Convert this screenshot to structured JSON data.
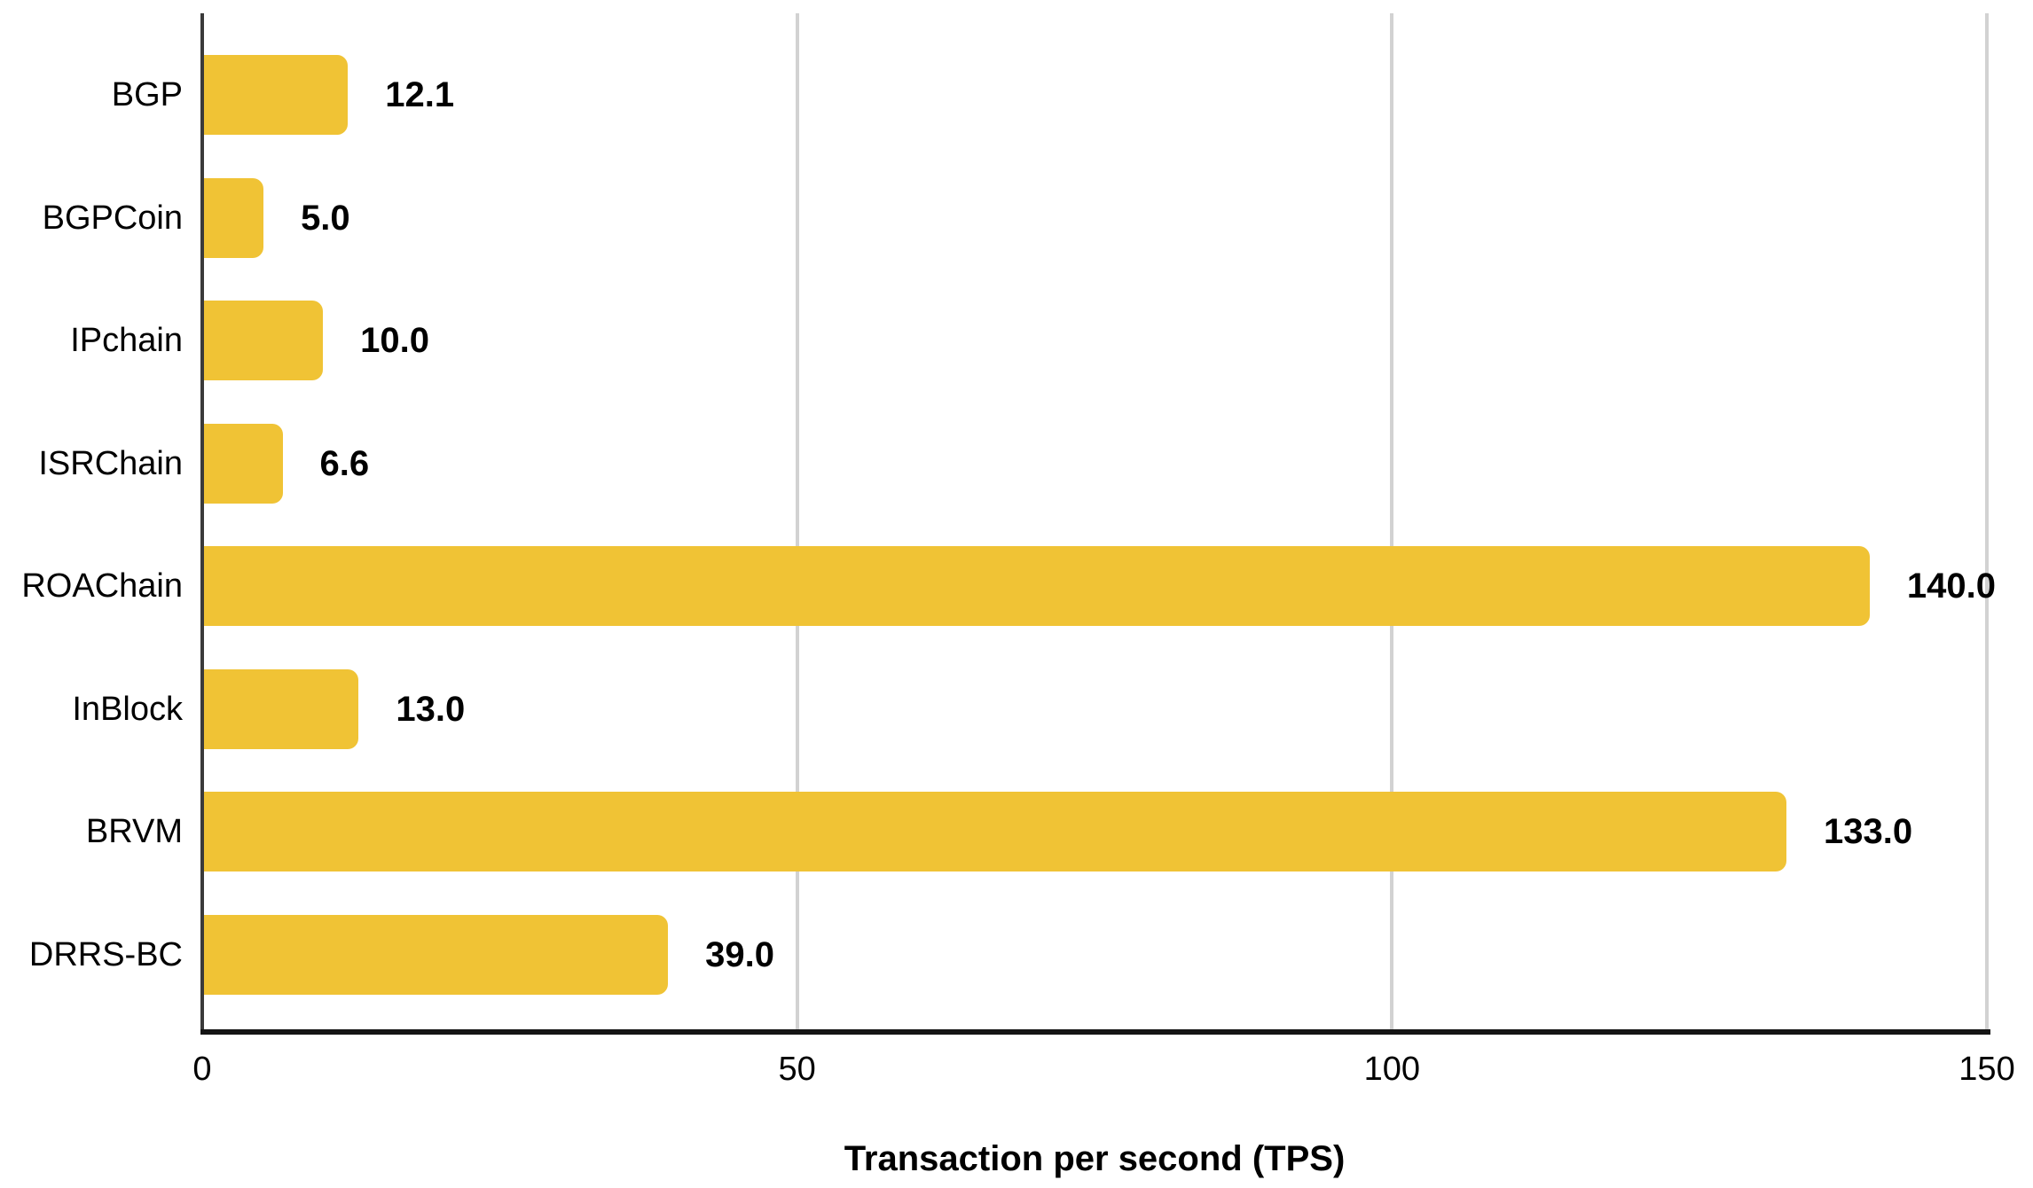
{
  "chart_data": {
    "type": "bar",
    "orientation": "horizontal",
    "categories": [
      "BGP",
      "BGPCoin",
      "IPchain",
      "ISRChain",
      "ROAChain",
      "InBlock",
      "BRVM",
      "DRRS-BC"
    ],
    "values": [
      12.1,
      5.0,
      10.0,
      6.6,
      140.0,
      13.0,
      133.0,
      39.0
    ],
    "value_labels": [
      "12.1",
      "5.0",
      "10.0",
      "6.6",
      "140.0",
      "13.0",
      "133.0",
      "39.0"
    ],
    "xlabel": "Transaction per second (TPS)",
    "ylabel": "",
    "xlim": [
      0,
      150
    ],
    "xticks": [
      0,
      50,
      100,
      150
    ],
    "xtick_labels": [
      "0",
      "50",
      "100",
      "150"
    ],
    "grid": "vertical-gridlines-at-ticks",
    "legend": "none",
    "data_labels": "outside-end-of-bar",
    "colors": {
      "bar": "#F0C335",
      "gridline": "#D2D2D2",
      "y_axis_line": "#3A3A3A",
      "x_axis_line": "#141414",
      "text": "#000000",
      "background": "#FFFFFF"
    }
  }
}
